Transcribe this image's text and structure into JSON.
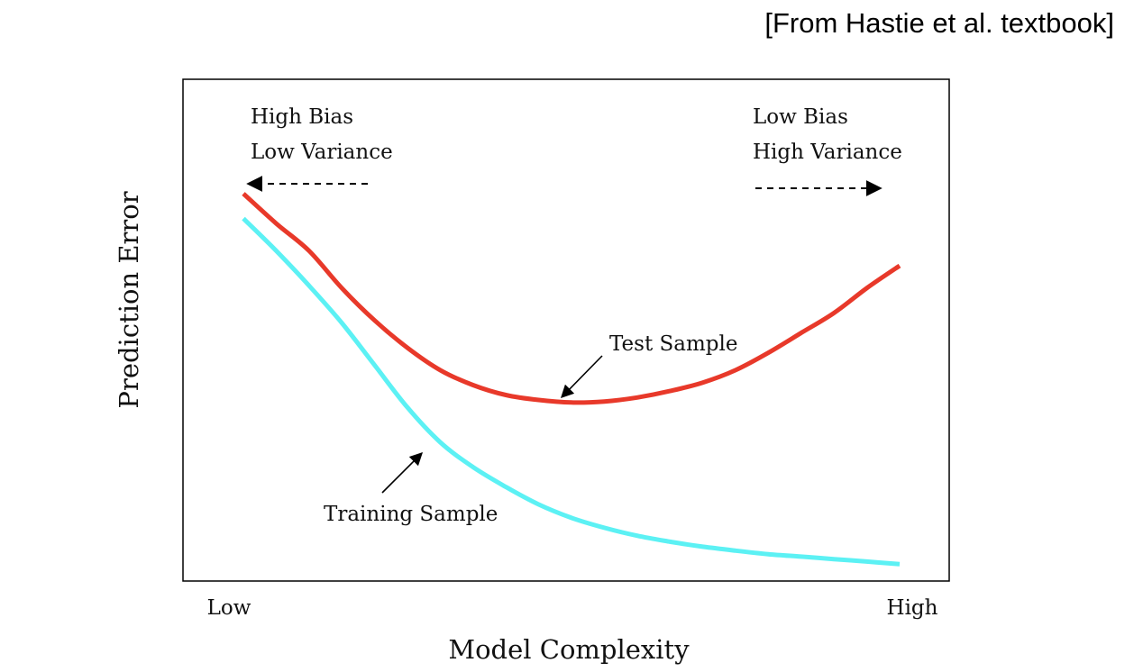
{
  "source_note": "[From Hastie et al. textbook]",
  "chart_data": {
    "type": "line",
    "title": "",
    "xlabel": "Model Complexity",
    "ylabel": "Prediction Error",
    "x_tick_labels": [
      "Low",
      "High"
    ],
    "xlim": [
      0,
      1
    ],
    "ylim": [
      0,
      1
    ],
    "grid": false,
    "legend": "none",
    "series": [
      {
        "name": "Test Sample",
        "color": "#e8392a",
        "x": [
          0.0,
          0.05,
          0.1,
          0.15,
          0.2,
          0.25,
          0.3,
          0.35,
          0.4,
          0.45,
          0.5,
          0.55,
          0.6,
          0.65,
          0.7,
          0.75,
          0.8,
          0.85,
          0.9,
          0.95,
          1.0
        ],
        "y": [
          0.77,
          0.71,
          0.655,
          0.58,
          0.515,
          0.46,
          0.415,
          0.385,
          0.365,
          0.355,
          0.35,
          0.352,
          0.36,
          0.373,
          0.39,
          0.415,
          0.45,
          0.49,
          0.53,
          0.58,
          0.625
        ]
      },
      {
        "name": "Training Sample",
        "color": "#5cf1f4",
        "x": [
          0.0,
          0.05,
          0.1,
          0.15,
          0.2,
          0.25,
          0.3,
          0.35,
          0.4,
          0.45,
          0.5,
          0.55,
          0.6,
          0.65,
          0.7,
          0.75,
          0.8,
          0.85,
          0.9,
          0.95,
          1.0
        ],
        "y": [
          0.72,
          0.655,
          0.585,
          0.51,
          0.425,
          0.34,
          0.27,
          0.22,
          0.18,
          0.145,
          0.118,
          0.098,
          0.082,
          0.07,
          0.06,
          0.052,
          0.045,
          0.04,
          0.035,
          0.03,
          0.025
        ]
      }
    ],
    "annotations": [
      {
        "lines": [
          "High Bias",
          "Low Variance"
        ],
        "arrow": "left"
      },
      {
        "lines": [
          "Low Bias",
          "High Variance"
        ],
        "arrow": "right"
      },
      {
        "text": "Test Sample",
        "points_to": "Test Sample"
      },
      {
        "text": "Training Sample",
        "points_to": "Training Sample"
      }
    ]
  }
}
